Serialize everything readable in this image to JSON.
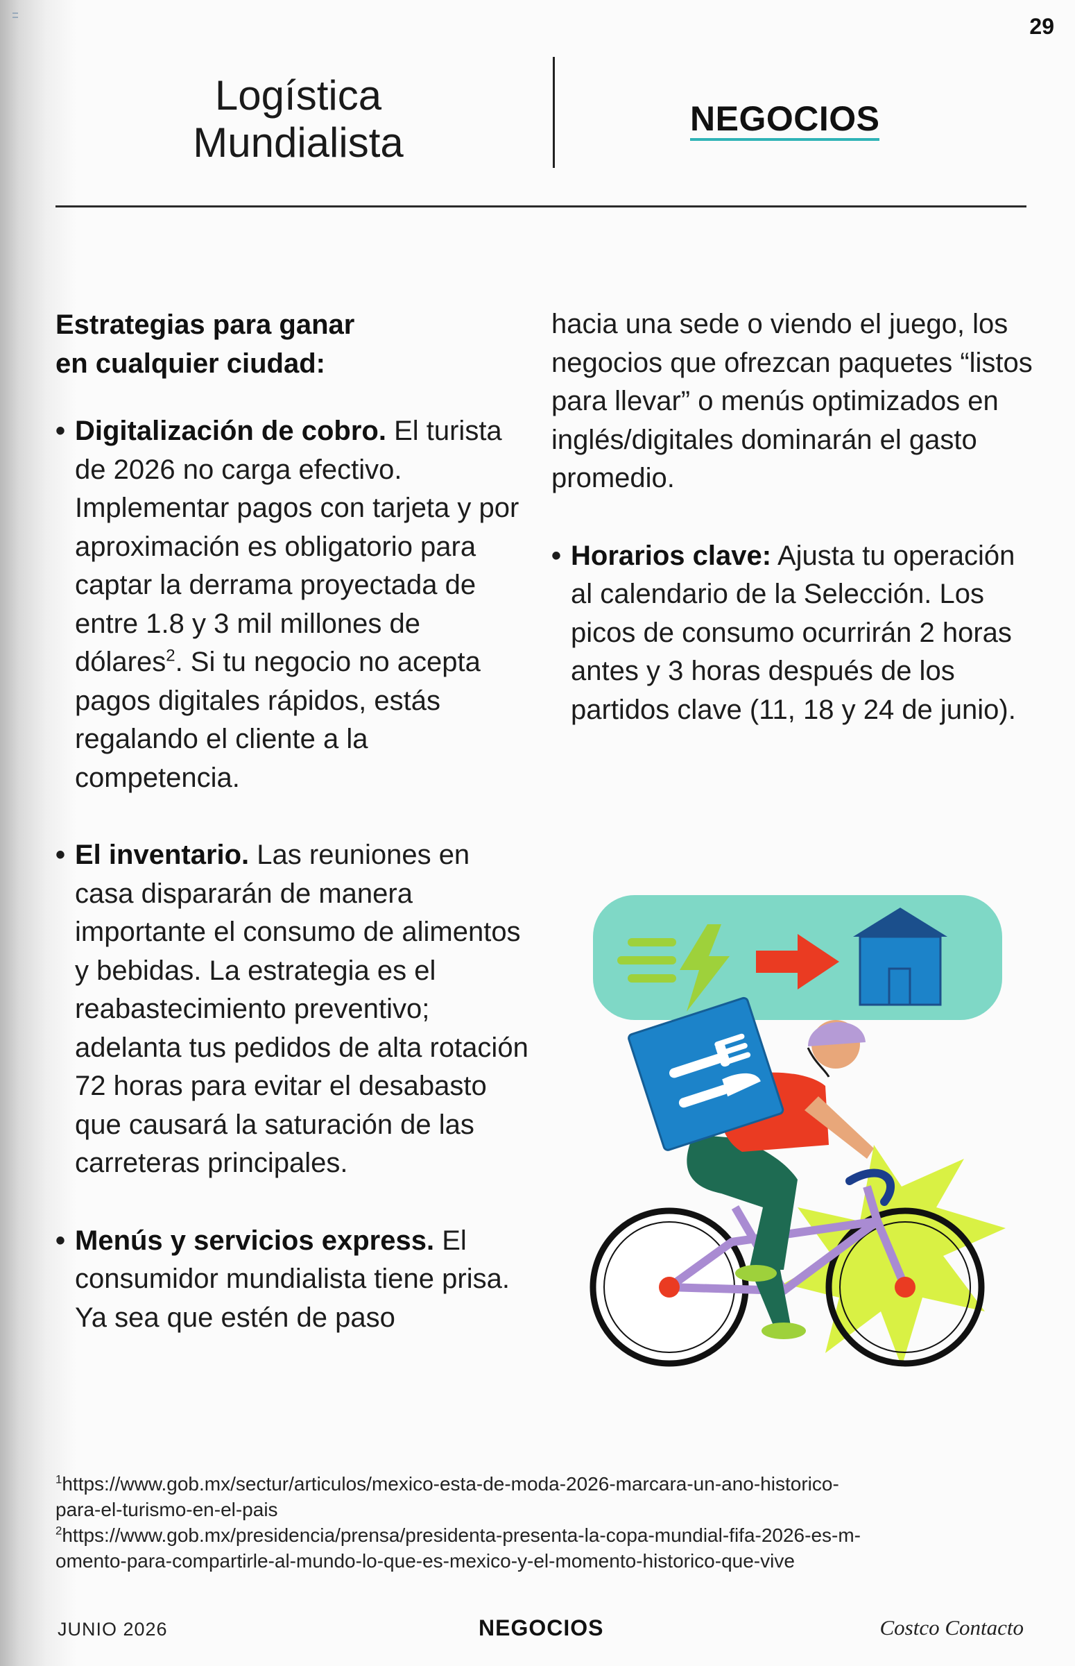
{
  "page_number": "29",
  "header": {
    "title_line1": "Logística",
    "title_line2": "Mundialista",
    "section": "NEGOCIOS"
  },
  "subtitle_line1": "Estrategias para ganar",
  "subtitle_line2": "en cualquier ciudad:",
  "bullets": [
    {
      "lead": "Digitalización de cobro.",
      "text_before_sup": " El turista de 2026 no carga efectivo. Implementar pagos con tarjeta y por aproximación es obligatorio para captar la derrama proyectada de entre 1.8 y 3 mil millones de dólares",
      "sup": "2",
      "text_after_sup": ". Si tu negocio no acepta pagos digitales rápidos, estás regalando el cliente a la competencia."
    },
    {
      "lead": "El inventario.",
      "text": " Las reuniones en casa dispararán de manera importante el consumo de alimentos y bebidas. La estrategia es el reabastecimiento preventivo; adelanta tus pedidos de alta rotación 72 horas para evitar el desabasto que causará la saturación de las carreteras principales."
    },
    {
      "lead": "Menús y servicios express.",
      "text": " El consumidor mundialista tiene prisa. Ya sea que estén de paso"
    }
  ],
  "right_continuation": "hacia una sede o viendo el juego, los negocios que ofrezcan paquetes “listos para llevar” o menús optimizados en inglés/digitales dominarán el gasto promedio.",
  "right_bullet": {
    "lead": "Horarios clave:",
    "text": " Ajusta tu operación al calendario de la Selección. Los picos de consumo ocurrirán 2 horas antes y 3 horas después de los partidos clave (11, 18 y 24 de junio)."
  },
  "footnotes": {
    "fn1_mark": "1",
    "fn1_line1": "https://www.gob.mx/sectur/articulos/mexico-esta-de-moda-2026-marcara-un-ano-historico-",
    "fn1_line2": "para-el-turismo-en-el-pais",
    "fn2_mark": "2",
    "fn2_line1": "https://www.gob.mx/presidencia/prensa/presidenta-presenta-la-copa-mundial-fifa-2026-es-m-",
    "fn2_line2": "omento-para-compartirle-al-mundo-lo-que-es-mexico-y-el-momento-historico-que-vive"
  },
  "footer": {
    "date": "JUNIO 2026",
    "section": "NEGOCIOS",
    "brand": "Costco Contacto"
  },
  "illustration": {
    "description_icons": [
      "speed-lines-icon",
      "lightning-icon",
      "arrow-right-icon",
      "house-icon",
      "fork-icon",
      "knife-icon"
    ],
    "colors": {
      "banner": "#7fd8c6",
      "lightning": "#9ed13b",
      "arrow": "#ea3b22",
      "house": "#1c83c9",
      "house_roof": "#1b4f8c",
      "delivery_box": "#1c83c9",
      "shirt": "#ea3b22",
      "pants": "#1e6b52",
      "helmet": "#b59bd6",
      "bike_frame": "#a98bd2",
      "burst": "#d7f03a",
      "skin": "#e8a77a"
    }
  }
}
